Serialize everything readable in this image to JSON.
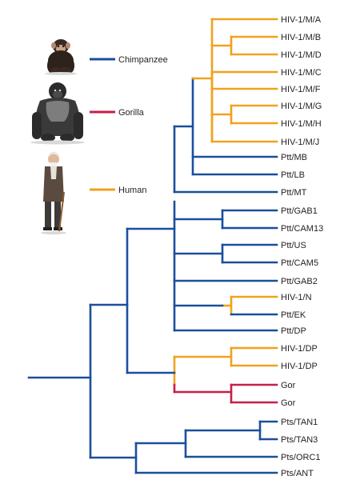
{
  "colors": {
    "chimpanzee": "#1a4f9c",
    "gorilla": "#c81d4a",
    "human": "#f0a21e"
  },
  "legend": [
    {
      "label": "Chimpanzee",
      "color_key": "chimpanzee",
      "icon": "chimpanzee-icon"
    },
    {
      "label": "Gorilla",
      "color_key": "gorilla",
      "icon": "gorilla-icon"
    },
    {
      "label": "Human",
      "color_key": "human",
      "icon": "human-icon"
    }
  ],
  "tree": {
    "leaves": [
      "HIV-1/M/A",
      "HIV-1/M/B",
      "HIV-1/M/D",
      "HIV-1/M/C",
      "HIV-1/M/F",
      "HIV-1/M/G",
      "HIV-1/M/H",
      "HIV-1/M/J",
      "Ptt/MB",
      "Ptt/LB",
      "Ptt/MT",
      "Ptt/GAB1",
      "Ptt/CAM13",
      "Ptt/US",
      "Ptt/CAM5",
      "Ptt/GAB2",
      "HIV-1/N",
      "Ptt/EK",
      "Ptt/DP",
      "HIV-1/DP",
      "HIV-1/DP",
      "Gor",
      "Gor",
      "Pts/TAN1",
      "Pts/TAN3",
      "Pts/ORC1",
      "Pts/ANT"
    ]
  }
}
